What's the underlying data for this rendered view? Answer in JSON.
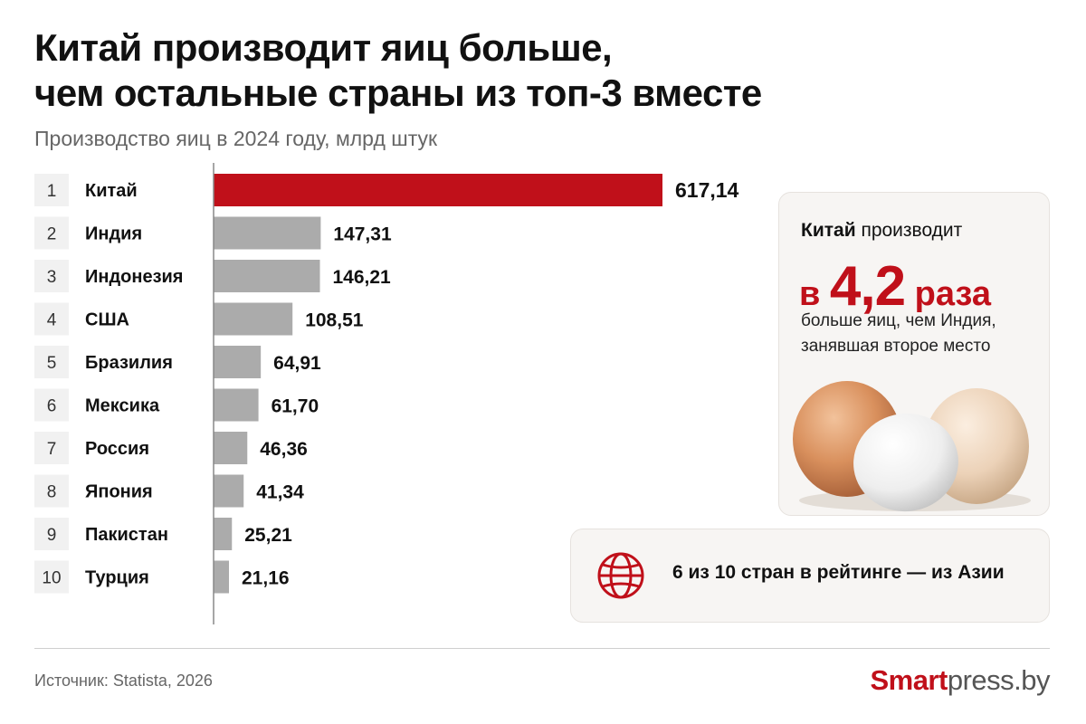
{
  "header": {
    "title_line1": "Китай производит яиц больше,",
    "title_line2": "чем остальные страны из топ-3 вместе",
    "subtitle": "Производство яиц в 2024 году, млрд штук"
  },
  "chart_data": {
    "type": "bar",
    "orientation": "horizontal",
    "ranks": [
      "1",
      "2",
      "3",
      "4",
      "5",
      "6",
      "7",
      "8",
      "9",
      "10"
    ],
    "categories": [
      "Китай",
      "Индия",
      "Индонезия",
      "США",
      "Бразилия",
      "Мексика",
      "Россия",
      "Япония",
      "Пакистан",
      "Турция"
    ],
    "values": [
      617.14,
      147.31,
      146.21,
      108.51,
      64.91,
      61.7,
      46.36,
      41.34,
      25.21,
      21.16
    ],
    "value_labels": [
      "617,14",
      "147,31",
      "146,21",
      "108,51",
      "64,91",
      "61,70",
      "46,36",
      "41,34",
      "25,21",
      "21,16"
    ],
    "xlim": [
      0,
      617.14
    ],
    "grid": false,
    "legend": "none",
    "colors": {
      "highlight": "#c0101a",
      "default": "#ababab"
    }
  },
  "card_ratio": {
    "line1_bold": "Китай",
    "line1_rest": " производит",
    "big_prefix": "в ",
    "big_number": "4,2",
    "big_suffix": " раза",
    "desc_line1": "больше яиц, чем Индия,",
    "desc_line2": "занявшая второе место"
  },
  "card_asia": {
    "icon": "globe-icon",
    "text": "6 из 10 стран в рейтинге — из Азии"
  },
  "footer": {
    "source": "Источник: Statista, 2026",
    "brand_part1": "Smart",
    "brand_part2": "press.by"
  },
  "colors": {
    "accent": "#c0101a",
    "bar_gray": "#ababab",
    "card_bg": "#f7f5f3"
  }
}
